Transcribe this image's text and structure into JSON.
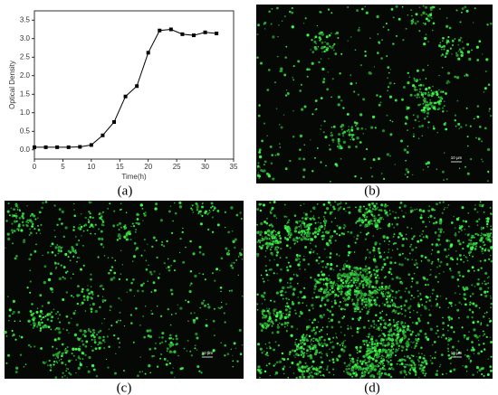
{
  "chart_data": {
    "type": "line",
    "xlabel": "Time(h)",
    "ylabel": "Optical Density",
    "x": [
      0,
      2,
      4,
      6,
      8,
      10,
      12,
      14,
      16,
      18,
      20,
      22,
      24,
      26,
      28,
      30,
      32
    ],
    "values": [
      0.07,
      0.07,
      0.07,
      0.07,
      0.08,
      0.13,
      0.39,
      0.75,
      1.44,
      1.72,
      2.62,
      3.22,
      3.25,
      3.12,
      3.09,
      3.17,
      3.14
    ],
    "color": "#000000",
    "xlim": [
      0,
      35
    ],
    "xticks": [
      0,
      5,
      10,
      15,
      20,
      25,
      30,
      35
    ],
    "ylim": [
      -0.25,
      3.75
    ],
    "yticks": [
      {
        "value": 0,
        "label": "0.0"
      },
      0.5,
      {
        "value": 1,
        "label": "1.0"
      },
      1.5,
      {
        "value": 2,
        "label": "2.0"
      },
      2.5,
      {
        "value": 3,
        "label": "3.0"
      },
      3.5
    ]
  },
  "panels": [
    {
      "label": "(a)"
    },
    {
      "label": "(b)",
      "scale_bar": "10 μm"
    },
    {
      "label": "(c)",
      "scale_bar": "10 μm"
    },
    {
      "label": "(d)",
      "scale_bar": "10 μm"
    }
  ]
}
